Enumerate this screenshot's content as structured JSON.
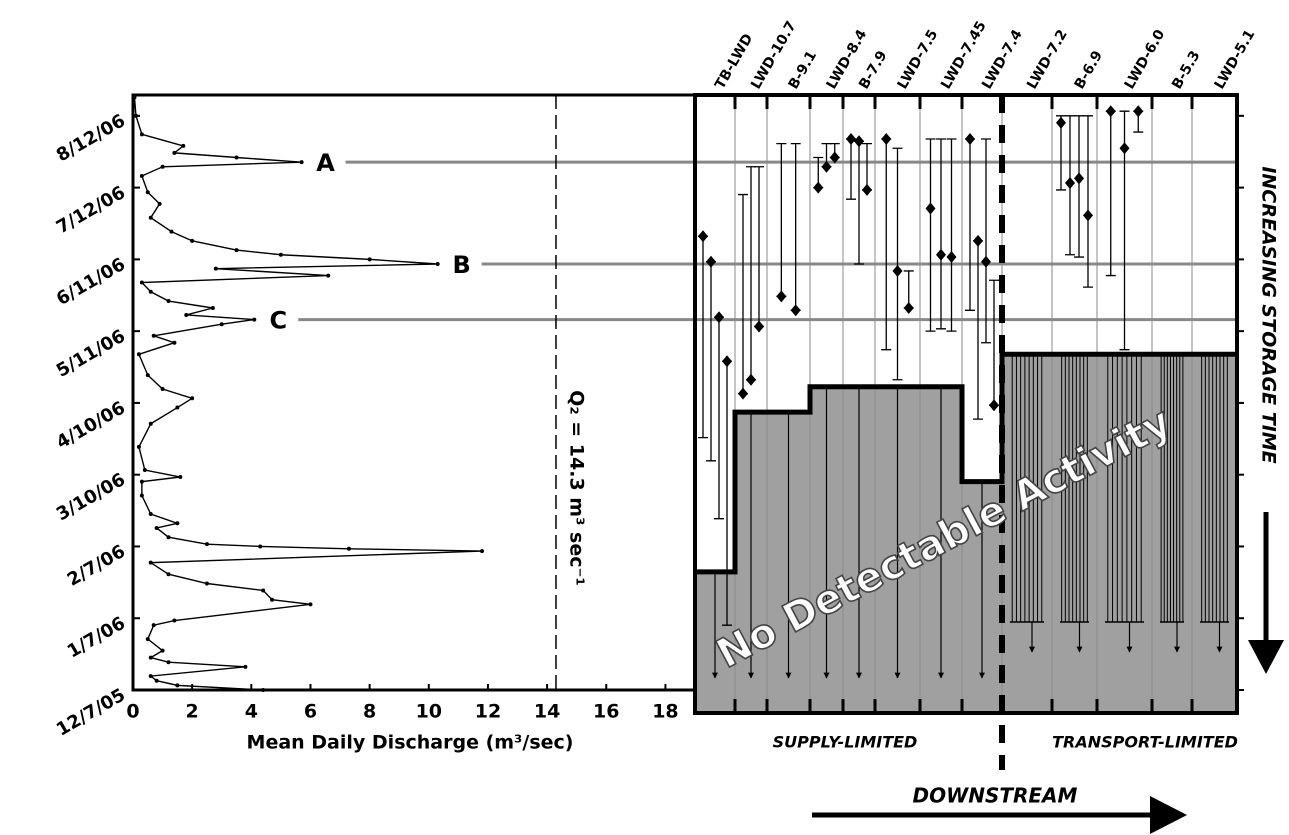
{
  "chart_data": [
    {
      "type": "line",
      "xlabel": "Mean Daily Discharge (m³/sec)",
      "xlim": [
        0,
        19
      ],
      "xticks": [
        0,
        2,
        4,
        6,
        8,
        10,
        12,
        14,
        16,
        18
      ],
      "ylim": [
        "12/7/05",
        "8/21/06"
      ],
      "yticks": [
        "12/7/05",
        "1/7/06",
        "2/7/06",
        "3/10/06",
        "4/10/06",
        "5/11/06",
        "6/11/06",
        "7/12/06",
        "8/12/06"
      ],
      "series": [
        {
          "color": "#000000",
          "x": [
            "12/7/05",
            "12/9/05",
            "12/11/05",
            "12/13/05",
            "12/17/05",
            "12/19/05",
            "12/21/05",
            "12/24/05",
            "12/29/05",
            "1/4/06",
            "1/6/06",
            "1/13/06",
            "1/15/06",
            "1/19/06",
            "1/22/06",
            "1/26/06",
            "1/31/06",
            "2/5/06",
            "2/6/06",
            "2/7/06",
            "2/8/06",
            "2/11/06",
            "2/15/06",
            "2/17/06",
            "2/21/06",
            "3/1/06",
            "3/7/06",
            "3/9/06",
            "3/12/06",
            "3/22/06",
            "4/1/06",
            "4/8/06",
            "4/12/06",
            "4/16/06",
            "4/22/06",
            "5/1/06",
            "5/6/06",
            "5/9/06",
            "5/14/06",
            "5/16/06",
            "5/18/06",
            "5/21/06",
            "5/24/06",
            "5/28/06",
            "6/1/06",
            "6/4/06",
            "6/7/06",
            "6/9/06",
            "6/11/06",
            "6/13/06",
            "6/15/06",
            "6/19/06",
            "6/23/06",
            "6/29/06",
            "7/5/06",
            "7/10/06",
            "7/17/06",
            "7/21/06",
            "7/23/06",
            "7/25/06",
            "7/27/06",
            "7/30/06",
            "8/4/06",
            "8/12/06",
            "8/20/06"
          ],
          "values": [
            4.4,
            1.5,
            0.8,
            0.6,
            3.8,
            1.2,
            0.6,
            1.0,
            0.5,
            0.7,
            1.4,
            6.0,
            4.7,
            4.4,
            2.5,
            1.2,
            0.6,
            11.8,
            7.3,
            4.3,
            2.5,
            1.2,
            0.8,
            1.5,
            0.6,
            0.3,
            0.3,
            1.6,
            0.4,
            0.2,
            0.6,
            1.5,
            2.0,
            1.0,
            0.5,
            0.2,
            1.4,
            0.7,
            3.0,
            4.1,
            1.8,
            2.7,
            1.2,
            0.6,
            0.3,
            6.6,
            2.8,
            10.3,
            8.0,
            5.0,
            3.5,
            2.0,
            1.3,
            0.6,
            0.9,
            0.5,
            0.3,
            1.0,
            5.7,
            3.5,
            1.4,
            1.7,
            0.3,
            0.1,
            0.05
          ]
        }
      ],
      "reference": {
        "text": "Q₂ = 14.3 m³ sec⁻¹",
        "x": 14.3
      },
      "annotations": [
        {
          "text": "A",
          "date": "7/23/06"
        },
        {
          "text": "B",
          "date": "6/9/06"
        },
        {
          "text": "C",
          "date": "5/16/06"
        }
      ]
    },
    {
      "type": "range",
      "stations": [
        {
          "name": "TB-LWD",
          "threshold": "1/27/06",
          "points": [
            "6/21/06",
            "6/10/06",
            "5/17/06",
            "4/28/06"
          ],
          "upper": [
            "6/21/06",
            "6/10/06",
            "5/17/06",
            "4/28/06"
          ],
          "lower": [
            "3/26/06",
            "3/16/06",
            "2/19/06",
            "1/4/06"
          ]
        },
        {
          "name": "LWD-10.7",
          "threshold": "4/6/06",
          "points": [
            "4/14/06",
            "4/20/06",
            "5/13/06"
          ],
          "upper": [
            "7/9/06",
            "7/21/06",
            "7/21/06"
          ],
          "lower": [
            "4/14/06",
            "4/20/06",
            "5/13/06"
          ]
        },
        {
          "name": "B-9.1",
          "threshold": "4/6/06",
          "points": [
            "5/26/06",
            "5/20/06"
          ],
          "upper": [
            "7/31/06",
            "7/31/06"
          ],
          "lower": [
            "5/26/06",
            "5/20/06"
          ]
        },
        {
          "name": "LWD-8.4",
          "threshold": "4/17/06",
          "points": [
            "7/12/06",
            "7/21/06",
            "7/25/06"
          ],
          "upper": [
            "7/25/06",
            "7/31/06",
            "7/31/06"
          ],
          "lower": [
            "7/12/06",
            "7/21/06",
            "7/25/06"
          ]
        },
        {
          "name": "B-7.9",
          "threshold": "4/17/06",
          "points": [
            "8/2/06",
            "8/1/06",
            "7/11/06"
          ],
          "upper": [
            "8/2/06",
            "8/1/06",
            "7/31/06"
          ],
          "lower": [
            "7/7/06",
            "6/9/06",
            "7/11/06"
          ]
        },
        {
          "name": "LWD-7.5",
          "threshold": "4/17/06",
          "points": [
            "8/2/06",
            "6/6/06",
            "5/21/06"
          ],
          "upper": [
            "8/2/06",
            "7/29/06",
            "6/6/06"
          ],
          "lower": [
            "5/3/06",
            "4/20/06",
            "5/21/06"
          ]
        },
        {
          "name": "LWD-7.45",
          "threshold": "4/17/06",
          "points": [
            "7/3/06",
            "6/13/06",
            "6/12/06"
          ],
          "upper": [
            "8/2/06",
            "8/2/06",
            "8/2/06"
          ],
          "lower": [
            "5/11/06",
            "5/12/06",
            "5/11/06"
          ]
        },
        {
          "name": "LWD-7.4",
          "threshold": "3/7/06",
          "points": [
            "8/2/06",
            "6/19/06",
            "6/10/06",
            "4/9/06"
          ],
          "upper": [
            "8/2/06",
            "6/19/06",
            "8/2/06",
            "6/2/06"
          ],
          "lower": [
            "5/20/06",
            "4/3/06",
            "5/6/06",
            "4/9/06"
          ]
        },
        {
          "name": "LWD-7.2",
          "threshold": "5/1/06",
          "points": [],
          "upper": [],
          "lower": []
        },
        {
          "name": "B-6.9",
          "threshold": "5/1/06",
          "points": [
            "8/9/06",
            "7/14/06",
            "7/16/06",
            "6/30/06"
          ],
          "upper": [
            "8/12/06",
            "8/12/06",
            "8/12/06",
            "8/12/06"
          ],
          "lower": [
            "7/11/06",
            "6/13/06",
            "6/12/06",
            "5/30/06"
          ]
        },
        {
          "name": "LWD-6.0",
          "threshold": "5/1/06",
          "points": [
            "8/14/06",
            "7/29/06",
            "8/14/06"
          ],
          "upper": [
            "8/14/06",
            "8/14/06",
            "8/14/06"
          ],
          "lower": [
            "6/4/06",
            "5/3/06",
            "8/5/06"
          ]
        },
        {
          "name": "B-5.3",
          "threshold": "5/1/06",
          "points": [],
          "upper": [],
          "lower": []
        },
        {
          "name": "LWD-5.1",
          "threshold": "5/1/06",
          "points": [],
          "upper": [],
          "lower": []
        }
      ],
      "region_label": "No Detectable Activity",
      "regimes": [
        "SUPPLY-LIMITED",
        "TRANSPORT-LIMITED"
      ],
      "ylabel": "INCREASING STORAGE TIME",
      "xlabel": "DOWNSTREAM"
    }
  ]
}
